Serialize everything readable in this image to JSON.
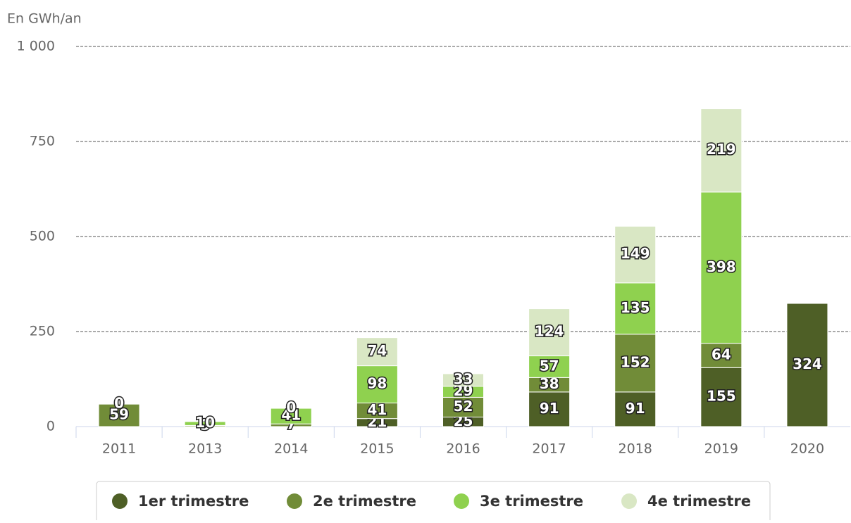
{
  "chart_data": {
    "type": "bar",
    "stacked": true,
    "y_axis_label": "En GWh/an",
    "categories": [
      "2011",
      "2013",
      "2014",
      "2015",
      "2016",
      "2017",
      "2018",
      "2019",
      "2020"
    ],
    "series": [
      {
        "name": "1er trimestre",
        "color": "#4e5f26",
        "values": [
          null,
          null,
          null,
          21,
          25,
          91,
          91,
          155,
          324
        ]
      },
      {
        "name": "2e trimestre",
        "color": "#718c38",
        "values": [
          59,
          3,
          7,
          41,
          52,
          38,
          152,
          64,
          null
        ]
      },
      {
        "name": "3e trimestre",
        "color": "#8fd14f",
        "values": [
          0,
          10,
          41,
          98,
          29,
          57,
          135,
          398,
          null
        ]
      },
      {
        "name": "4e trimestre",
        "color": "#d9e7c4",
        "values": [
          null,
          null,
          0,
          74,
          33,
          124,
          149,
          219,
          null
        ]
      }
    ],
    "ylim": [
      0,
      1000
    ],
    "yticks": [
      0,
      250,
      500,
      750,
      {
        "value": 1000,
        "label": "1 000"
      }
    ],
    "grid": true,
    "legend": "bottom"
  }
}
